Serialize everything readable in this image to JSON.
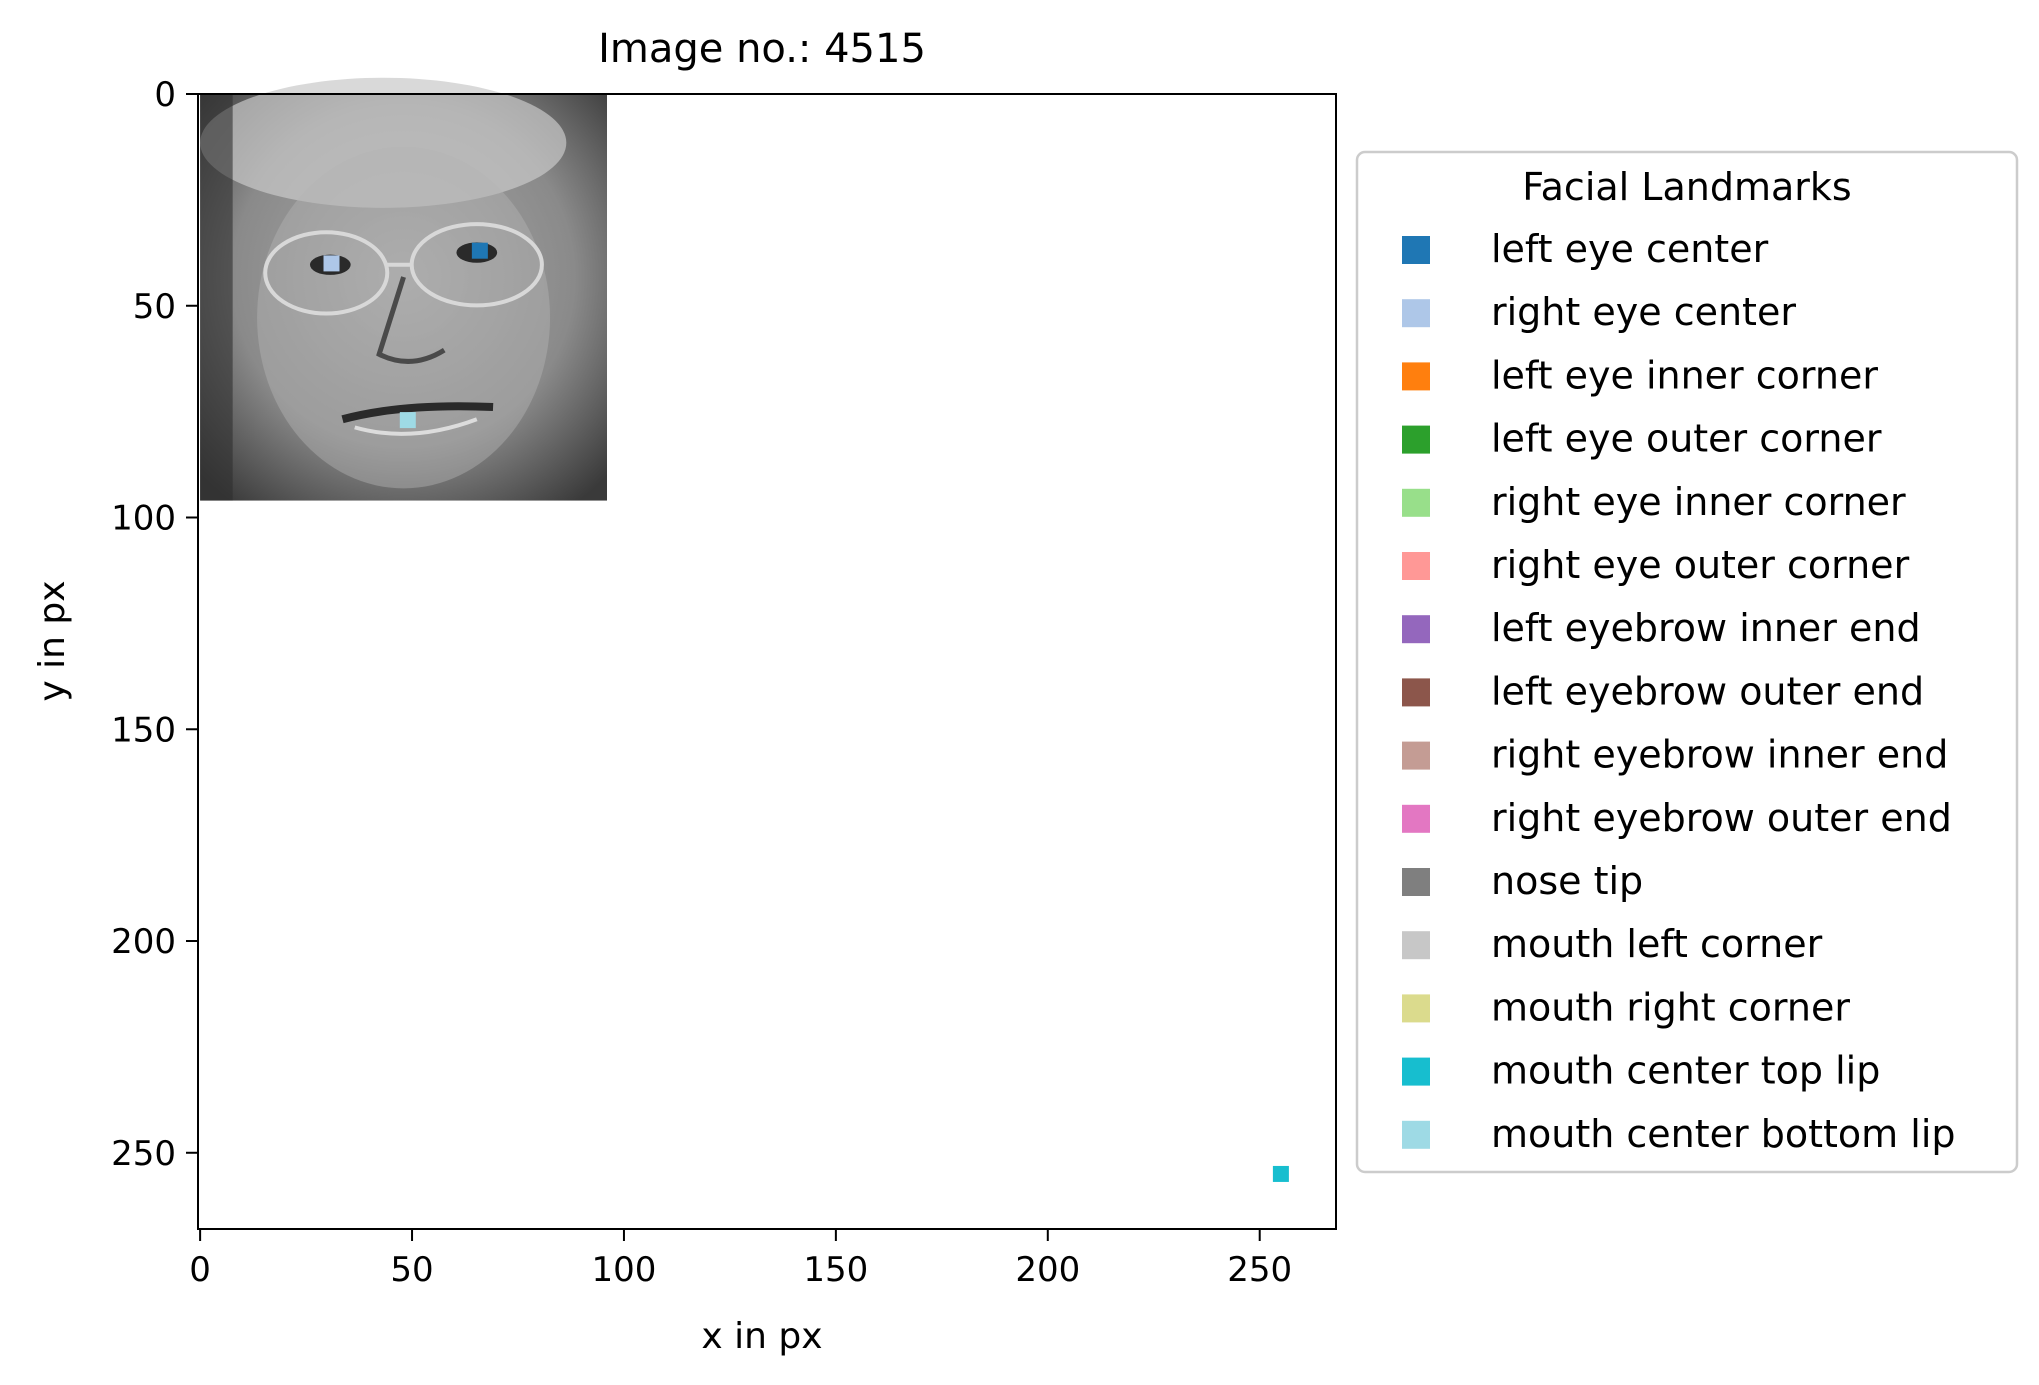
{
  "chart_data": {
    "type": "scatter",
    "title": "Image no.: 4515",
    "xlabel": "x in px",
    "ylabel": "y in px",
    "xlim": [
      -0.5,
      268
    ],
    "ylim": [
      268,
      0
    ],
    "y_inverted": true,
    "grid": false,
    "xticks": [
      0,
      50,
      100,
      150,
      200,
      250
    ],
    "yticks": [
      0,
      50,
      100,
      150,
      200,
      250
    ],
    "background_image": {
      "description": "grayscale face photo",
      "extent": [
        0,
        96,
        96,
        0
      ]
    },
    "legend": {
      "title": "Facial Landmarks",
      "placement": "right-outside"
    },
    "series": [
      {
        "name": "left eye center",
        "color": "#1f77b4",
        "points": [
          [
            66,
            37
          ]
        ]
      },
      {
        "name": "right eye center",
        "color": "#aec7e8",
        "points": [
          [
            31,
            40
          ]
        ]
      },
      {
        "name": "left eye inner corner",
        "color": "#ff7f0e",
        "points": []
      },
      {
        "name": "left eye outer corner",
        "color": "#2ca02c",
        "points": []
      },
      {
        "name": "right eye inner corner",
        "color": "#98df8a",
        "points": []
      },
      {
        "name": "right eye outer corner",
        "color": "#ff9896",
        "points": []
      },
      {
        "name": "left eyebrow inner end",
        "color": "#9467bd",
        "points": []
      },
      {
        "name": "left eyebrow outer end",
        "color": "#8c564b",
        "points": []
      },
      {
        "name": "right eyebrow inner end",
        "color": "#c49c94",
        "points": []
      },
      {
        "name": "right eyebrow outer end",
        "color": "#e377c2",
        "points": []
      },
      {
        "name": "nose tip",
        "color": "#7f7f7f",
        "points": []
      },
      {
        "name": "mouth left corner",
        "color": "#c7c7c7",
        "points": []
      },
      {
        "name": "mouth right corner",
        "color": "#dbdb8d",
        "points": []
      },
      {
        "name": "mouth center top lip",
        "color": "#17becf",
        "points": [
          [
            255,
            255
          ]
        ]
      },
      {
        "name": "mouth center bottom lip",
        "color": "#9edae5",
        "points": [
          [
            49,
            77
          ]
        ]
      }
    ]
  }
}
